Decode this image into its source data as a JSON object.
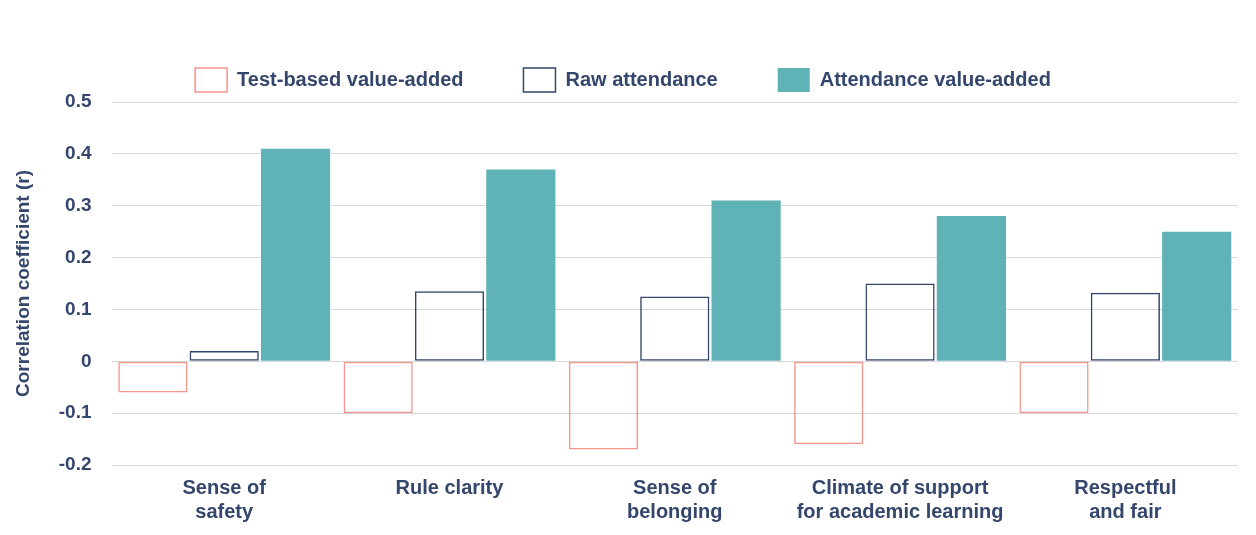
{
  "chart_data": {
    "type": "bar",
    "ylabel": "Correlation coefficient (r)",
    "categories": [
      "Sense of safety",
      "Rule clarity",
      "Sense of belonging",
      "Climate of support for academic learning",
      "Respectful and fair"
    ],
    "series": [
      {
        "name": "Test-based value-added",
        "color": "#f4968c",
        "values": [
          -0.06,
          -0.1,
          -0.17,
          -0.16,
          -0.1
        ]
      },
      {
        "name": "Raw attendance",
        "color": "#34466b",
        "values": [
          0.02,
          0.135,
          0.125,
          0.15,
          0.132
        ]
      },
      {
        "name": "Attendance value-added",
        "color": "#5fb3b7",
        "values": [
          0.41,
          0.37,
          0.31,
          0.28,
          0.25
        ]
      }
    ],
    "ylim": [
      -0.2,
      0.5
    ],
    "yticks": [
      -0.2,
      -0.1,
      0,
      0.1,
      0.2,
      0.3,
      0.4,
      0.5
    ],
    "grid": "y",
    "legend": "top"
  }
}
